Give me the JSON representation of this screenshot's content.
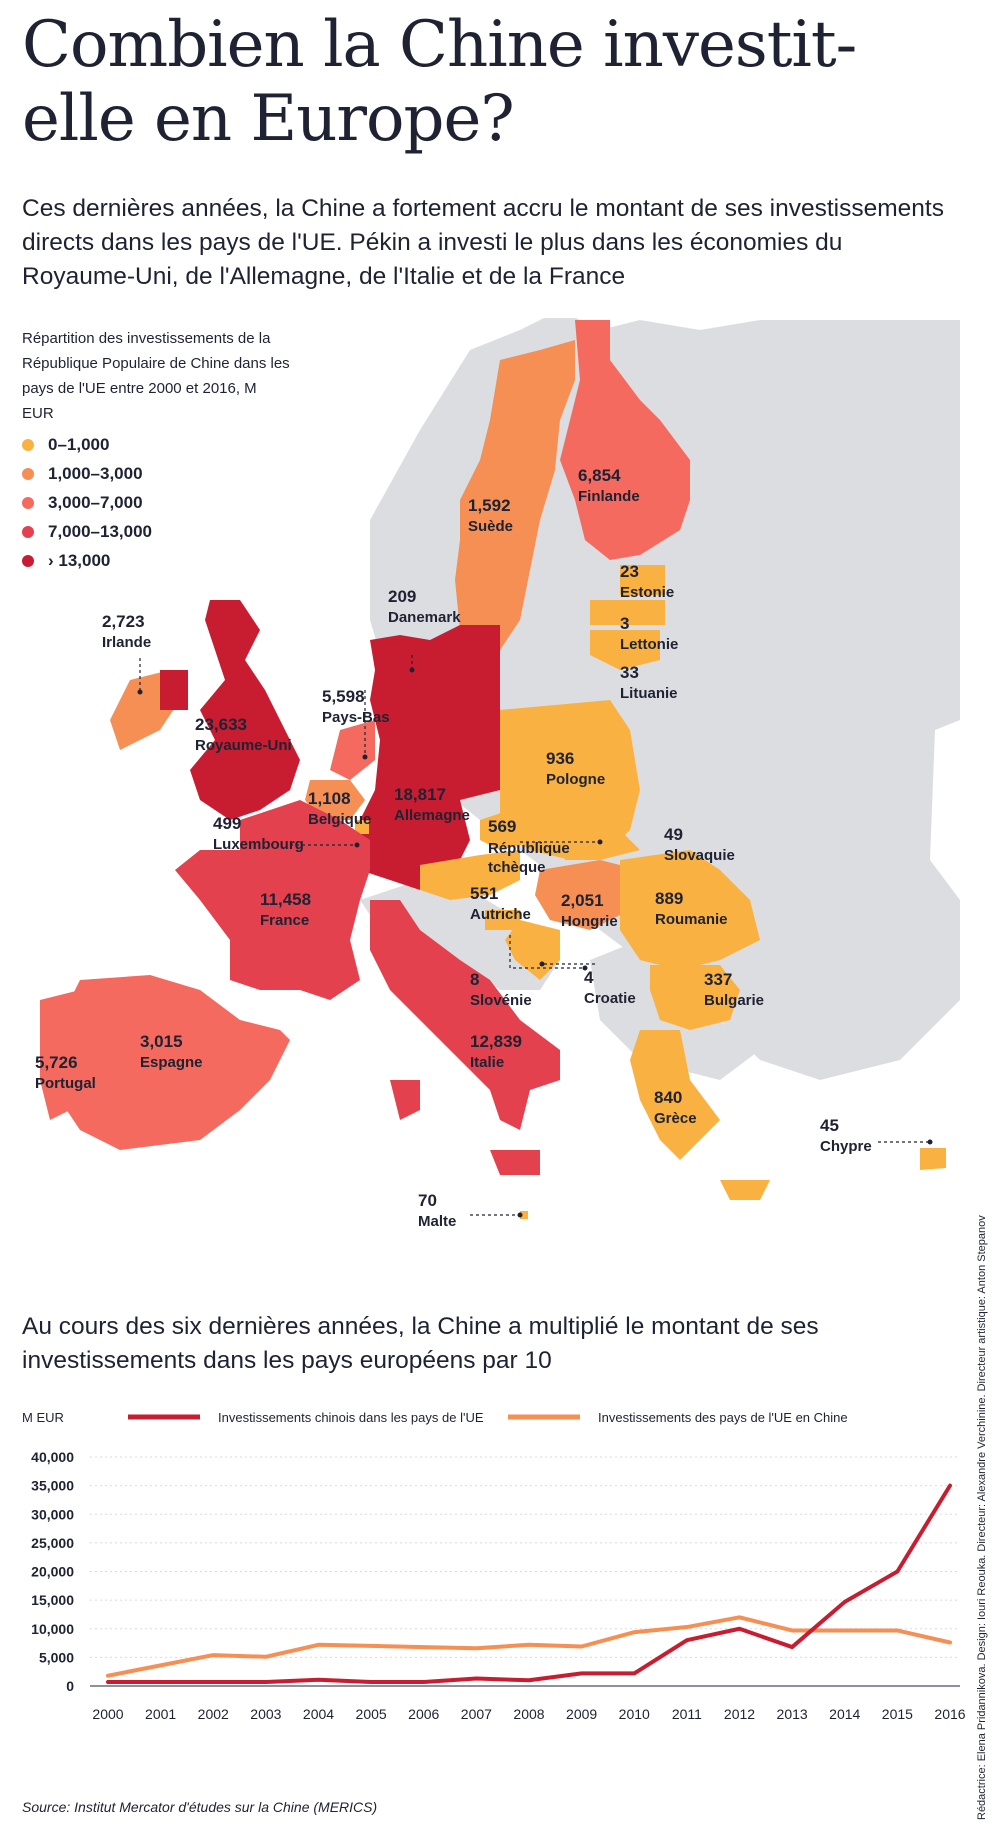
{
  "title": "Combien la Chine investit-elle en Europe?",
  "subtitle": "Ces dernières années, la Chine a fortement accru le montant de ses investissements directs dans les pays de l'UE. Pékin a investi le plus dans les économies du Royaume-Uni, de l'Allemagne, de l'Italie et de la France",
  "map_legend": {
    "title": "Répartition des investissements de la République Populaire de Chine dans les pays de l'UE entre 2000 et 2016, M EUR",
    "items": [
      {
        "label": "0–1,000",
        "color": "#f9b242"
      },
      {
        "label": "1,000–3,000",
        "color": "#f58f54"
      },
      {
        "label": "3,000–7,000",
        "color": "#f46a5e"
      },
      {
        "label": "7,000–13,000",
        "color": "#e3414e"
      },
      {
        "label": "› 13,000",
        "color": "#c81d31"
      }
    ]
  },
  "countries": [
    {
      "name": "Irlande",
      "value": "2,723"
    },
    {
      "name": "Royaume-Uni",
      "value": "23,633"
    },
    {
      "name": "Pays-Bas",
      "value": "5,598"
    },
    {
      "name": "Belgique",
      "value": "1,108"
    },
    {
      "name": "Luxembourg",
      "value": "499"
    },
    {
      "name": "Allemagne",
      "value": "18,817"
    },
    {
      "name": "Danemark",
      "value": "209"
    },
    {
      "name": "Suède",
      "value": "1,592"
    },
    {
      "name": "Finlande",
      "value": "6,854"
    },
    {
      "name": "Estonie",
      "value": "23"
    },
    {
      "name": "Lettonie",
      "value": "3"
    },
    {
      "name": "Lituanie",
      "value": "33"
    },
    {
      "name": "Pologne",
      "value": "936"
    },
    {
      "name": "République tchèque",
      "value": "569"
    },
    {
      "name": "Slovaquie",
      "value": "49"
    },
    {
      "name": "Autriche",
      "value": "551"
    },
    {
      "name": "Hongrie",
      "value": "2,051"
    },
    {
      "name": "Roumanie",
      "value": "889"
    },
    {
      "name": "Slovénie",
      "value": "8"
    },
    {
      "name": "Croatie",
      "value": "4"
    },
    {
      "name": "Bulgarie",
      "value": "337"
    },
    {
      "name": "France",
      "value": "11,458"
    },
    {
      "name": "Espagne",
      "value": "3,015"
    },
    {
      "name": "Portugal",
      "value": "5,726"
    },
    {
      "name": "Italie",
      "value": "12,839"
    },
    {
      "name": "Grèce",
      "value": "840"
    },
    {
      "name": "Chypre",
      "value": "45"
    },
    {
      "name": "Malte",
      "value": "70"
    }
  ],
  "chart_heading": "Au cours des six dernières années, la Chine a multiplié le montant de ses investissements dans les pays européens par 10",
  "chart_data": {
    "type": "line",
    "ylabel": "M EUR",
    "x": [
      "2000",
      "2001",
      "2002",
      "2003",
      "2004",
      "2005",
      "2006",
      "2007",
      "2008",
      "2009",
      "2010",
      "2011",
      "2012",
      "2013",
      "2014",
      "2015",
      "2016"
    ],
    "ylim": [
      0,
      40000
    ],
    "yticks": [
      0,
      5000,
      10000,
      15000,
      20000,
      25000,
      30000,
      35000,
      40000
    ],
    "ytick_labels": [
      "0",
      "5,000",
      "10,000",
      "15,000",
      "20,000",
      "25,000",
      "30,000",
      "35,000",
      "40,000"
    ],
    "grid": "horizontal",
    "series": [
      {
        "name": "Investissements chinois dans les pays de l'UE",
        "color": "#c81d31",
        "values": [
          700,
          700,
          700,
          700,
          1100,
          700,
          700,
          1300,
          1000,
          2200,
          2200,
          8000,
          10000,
          6800,
          14700,
          20000,
          35000
        ]
      },
      {
        "name": "Investissements des pays de l'UE en Chine",
        "color": "#f58f54",
        "values": [
          1800,
          3600,
          5400,
          5100,
          7200,
          7000,
          6800,
          6600,
          7200,
          6900,
          9400,
          10300,
          12000,
          9700,
          9700,
          9700,
          7600
        ]
      }
    ]
  },
  "source": "Source: Institut Mercator d'études sur la Chine (MERICS)",
  "credits": "Rédactrice: Elena Pridannikova. Design: Iouri Reouka. Directeur: Alexandre Verchinine. Directeur artistique: Anton Stepanov"
}
